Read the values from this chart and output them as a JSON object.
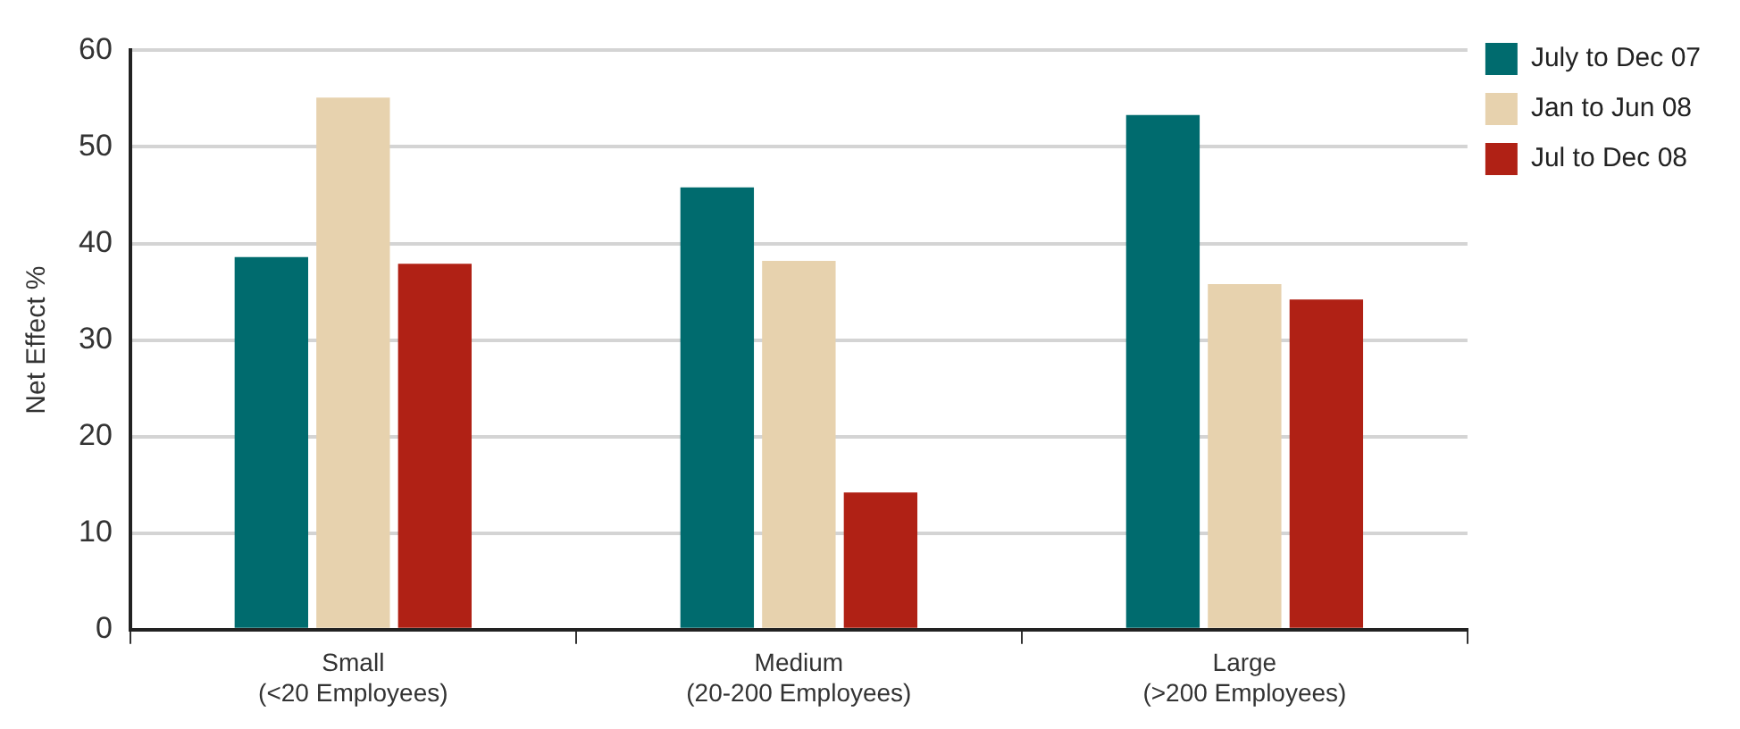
{
  "chart_data": {
    "type": "bar",
    "ylabel": "Net Effect %",
    "categories": [
      "Small\n(<20 Employees)",
      "Medium\n(20-200 Employees)",
      "Large\n(>200 Employees)"
    ],
    "series": [
      {
        "name": "July to Dec 07",
        "color": "#006b6e",
        "values": [
          38.6,
          45.8,
          53.3
        ]
      },
      {
        "name": "Jan to Jun 08",
        "color": "#e7d2ae",
        "values": [
          55.1,
          38.2,
          35.8
        ]
      },
      {
        "name": "Jul to Dec 08",
        "color": "#b02115",
        "values": [
          37.9,
          14.2,
          34.2
        ]
      }
    ],
    "ylim": [
      0,
      60
    ],
    "yticks": [
      0,
      10,
      20,
      30,
      40,
      50,
      60
    ],
    "grid": "y",
    "legend": "top right"
  }
}
